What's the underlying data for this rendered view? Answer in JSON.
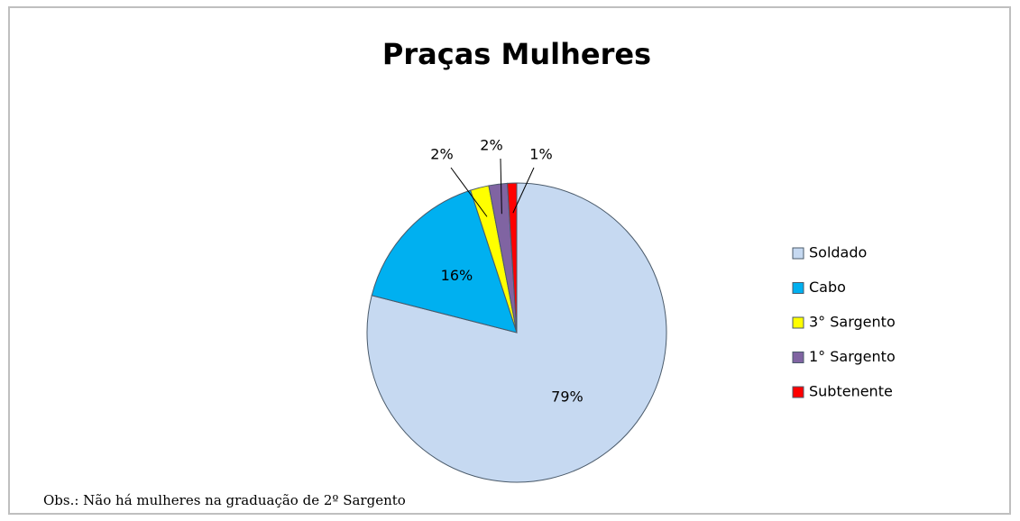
{
  "chart_data": {
    "type": "pie",
    "title": "Praças Mulheres",
    "categories": [
      "Soldado",
      "Cabo",
      "3° Sargento",
      "1° Sargento",
      "Subtenente"
    ],
    "values": [
      79,
      16,
      2,
      2,
      1
    ],
    "value_labels": [
      "79%",
      "16%",
      "2%",
      "2%",
      "1%"
    ],
    "colors": [
      "#c6d9f1",
      "#00b0f0",
      "#ffff00",
      "#8064a2",
      "#ff0000"
    ],
    "legend": "right",
    "annotation": "Obs.: Não há mulheres na graduação de 2º Sargento"
  }
}
